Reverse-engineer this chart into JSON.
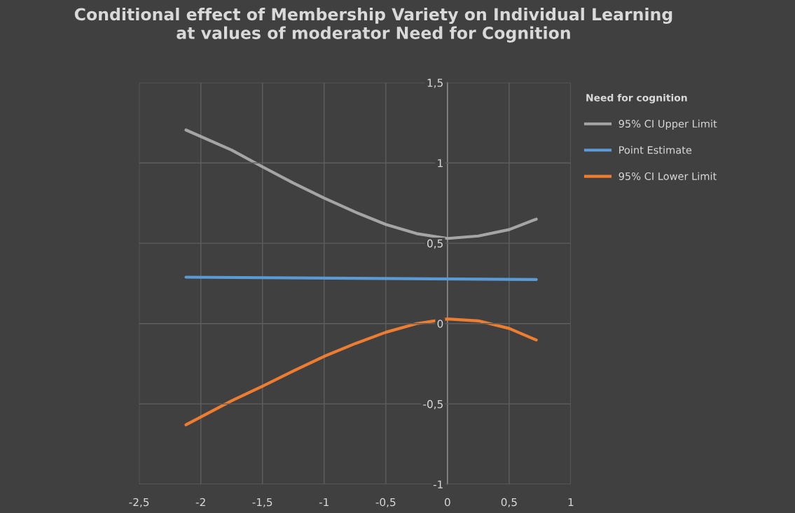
{
  "chart_data": {
    "type": "line",
    "title": "Conditional effect of Membership Variety on Individual Learning\nat values of moderator Need for Cognition",
    "legend_title": "Need for cognition",
    "series": [
      {
        "name": "95% CI Upper Limit",
        "color": "#a5a5a5",
        "x": [
          -2.12,
          -1.75,
          -1.5,
          -1.25,
          -1,
          -0.75,
          -0.5,
          -0.25,
          0,
          0.25,
          0.5,
          0.72
        ],
        "values": [
          1.205,
          1.08,
          0.976,
          0.875,
          0.781,
          0.695,
          0.617,
          0.56,
          0.53,
          0.545,
          0.585,
          0.65
        ]
      },
      {
        "name": "Point Estimate",
        "color": "#5b9bd5",
        "x": [
          -2.12,
          0.72
        ],
        "values": [
          0.289,
          0.274
        ]
      },
      {
        "name": "95% CI Lower Limit",
        "color": "#ed7d31",
        "x": [
          -2.12,
          -1.75,
          -1.5,
          -1.25,
          -1,
          -0.75,
          -0.5,
          -0.25,
          0,
          0.25,
          0.5,
          0.72
        ],
        "values": [
          -0.63,
          -0.48,
          -0.39,
          -0.295,
          -0.204,
          -0.125,
          -0.054,
          0.0,
          0.029,
          0.017,
          -0.03,
          -0.102
        ]
      }
    ],
    "xlim": [
      -2.5,
      1
    ],
    "xticks": [
      {
        "value": -2.5,
        "label": "-2,5"
      },
      {
        "value": -2,
        "label": "-2"
      },
      {
        "value": -1.5,
        "label": "-1,5"
      },
      {
        "value": -1,
        "label": "-1"
      },
      {
        "value": -0.5,
        "label": "-0,5"
      },
      {
        "value": 0,
        "label": "0"
      },
      {
        "value": 0.5,
        "label": "0,5"
      },
      {
        "value": 1,
        "label": "1"
      }
    ],
    "ylim": [
      -1,
      1.5
    ],
    "yticks": [
      {
        "value": -1,
        "label": "-1"
      },
      {
        "value": -0.5,
        "label": "-0,5"
      },
      {
        "value": 0,
        "label": "0"
      },
      {
        "value": 0.5,
        "label": "0,5"
      },
      {
        "value": 1,
        "label": "1"
      },
      {
        "value": 1.5,
        "label": "1,5"
      }
    ],
    "grid": true,
    "legend": "right",
    "marker": "none",
    "line_style": "solid"
  }
}
